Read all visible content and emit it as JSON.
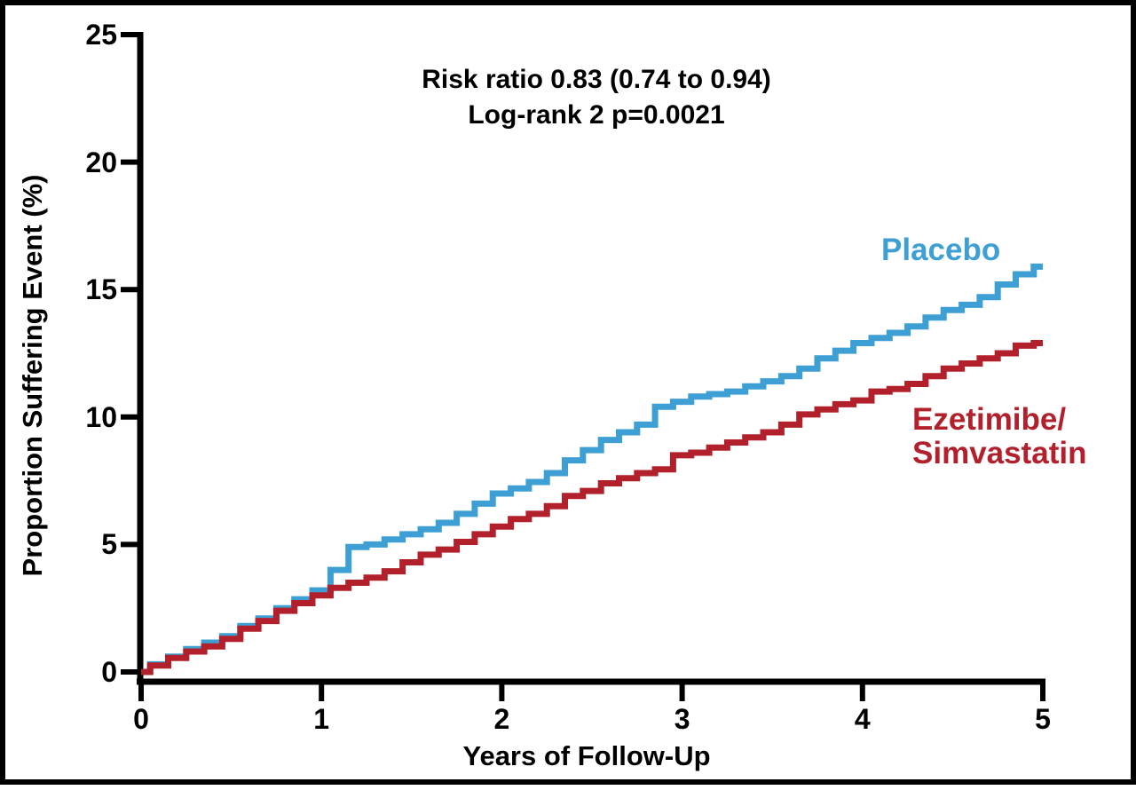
{
  "figure": {
    "series_labels": {
      "placebo": "Placebo",
      "ezetimibe_line1": "Ezetimibe/",
      "ezetimibe_line2": "Simvastatin"
    },
    "colors": {
      "placebo_blue": "#3D9FD3",
      "ezetimibe_red": "#B2202C",
      "axis_black": "#000000"
    }
  },
  "chart_data": {
    "type": "line",
    "subtype": "kaplan-meier-cumulative-incidence",
    "title": "",
    "xlabel": "Years of Follow-Up",
    "ylabel": "Proportion Suffering Event (%)",
    "xlim": [
      0,
      5
    ],
    "ylim": [
      0,
      25
    ],
    "x_ticks": [
      0,
      1,
      2,
      3,
      4,
      5
    ],
    "y_ticks": [
      0,
      5,
      10,
      15,
      20,
      25
    ],
    "grid": false,
    "legend_position": "inline-labels",
    "annotations": [
      "Risk ratio 0.83 (0.74 to 0.94)",
      "Log-rank 2 p=0.0021"
    ],
    "x": [
      0.0,
      0.1,
      0.2,
      0.3,
      0.4,
      0.5,
      0.6,
      0.7,
      0.8,
      0.9,
      1.0,
      1.1,
      1.2,
      1.3,
      1.4,
      1.5,
      1.6,
      1.7,
      1.8,
      1.9,
      2.0,
      2.1,
      2.2,
      2.3,
      2.4,
      2.5,
      2.6,
      2.7,
      2.8,
      2.9,
      3.0,
      3.1,
      3.2,
      3.3,
      3.4,
      3.5,
      3.6,
      3.7,
      3.8,
      3.9,
      4.0,
      4.1,
      4.2,
      4.3,
      4.4,
      4.5,
      4.6,
      4.7,
      4.8,
      4.9,
      5.0
    ],
    "series": [
      {
        "name": "Placebo",
        "color": "#3D9FD3",
        "values": [
          0.0,
          0.3,
          0.6,
          0.9,
          1.15,
          1.4,
          1.8,
          2.1,
          2.5,
          2.85,
          3.2,
          4.0,
          4.9,
          5.0,
          5.2,
          5.4,
          5.6,
          5.85,
          6.2,
          6.6,
          7.0,
          7.2,
          7.45,
          7.8,
          8.3,
          8.7,
          9.1,
          9.4,
          9.7,
          10.4,
          10.6,
          10.8,
          10.9,
          11.0,
          11.2,
          11.4,
          11.6,
          11.9,
          12.3,
          12.6,
          12.9,
          13.1,
          13.3,
          13.55,
          13.9,
          14.2,
          14.4,
          14.7,
          15.2,
          15.6,
          15.9
        ]
      },
      {
        "name": "Ezetimibe/Simvastatin",
        "color": "#B2202C",
        "values": [
          0.0,
          0.25,
          0.55,
          0.8,
          1.0,
          1.3,
          1.7,
          2.0,
          2.4,
          2.7,
          3.0,
          3.3,
          3.5,
          3.7,
          3.95,
          4.3,
          4.6,
          4.8,
          5.1,
          5.4,
          5.7,
          6.0,
          6.2,
          6.5,
          6.9,
          7.1,
          7.4,
          7.6,
          7.8,
          7.95,
          8.5,
          8.6,
          8.8,
          9.0,
          9.2,
          9.4,
          9.7,
          10.1,
          10.3,
          10.5,
          10.65,
          11.0,
          11.1,
          11.3,
          11.6,
          11.9,
          12.1,
          12.3,
          12.5,
          12.8,
          12.9
        ]
      }
    ]
  }
}
